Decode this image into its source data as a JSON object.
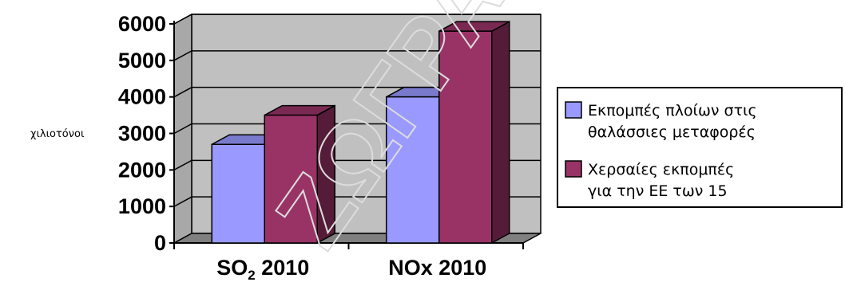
{
  "chart_data": {
    "type": "bar",
    "ylabel": "χιλιοτόνοι",
    "ylim": [
      0,
      6000
    ],
    "yticks": [
      "0",
      "1000",
      "2000",
      "3000",
      "4000",
      "5000",
      "6000"
    ],
    "categories": [
      {
        "main": "SO",
        "sub": "2",
        "rest": " 2010"
      },
      {
        "main": "NOx 2010",
        "sub": "",
        "rest": ""
      }
    ],
    "series": [
      {
        "name_lines": [
          "Εκπομπές πλοίων στις",
          "θαλάσσιες μεταφορές"
        ],
        "values": [
          2700,
          4000
        ],
        "color": "#9999ff"
      },
      {
        "name_lines": [
          "Χερσαίες εκπομπές",
          "για την ΕΕ των 15"
        ],
        "values": [
          3500,
          5800
        ],
        "color": "#993366"
      }
    ],
    "grid": true,
    "legend": "right",
    "wall_color": "#c0c0c0"
  }
}
